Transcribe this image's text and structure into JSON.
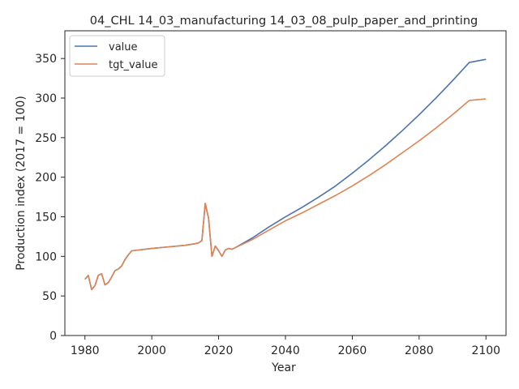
{
  "chart_data": {
    "type": "line",
    "title": "04_CHL 14_03_manufacturing 14_03_08_pulp_paper_and_printing",
    "xlabel": "Year",
    "ylabel": "Production index (2017 = 100)",
    "xlim": [
      1974,
      2106
    ],
    "ylim": [
      0,
      385
    ],
    "xticks": [
      1980,
      2000,
      2020,
      2040,
      2060,
      2080,
      2100
    ],
    "yticks": [
      0,
      50,
      100,
      150,
      200,
      250,
      300,
      350
    ],
    "grid": false,
    "legend_position": "top-left",
    "series": [
      {
        "name": "value",
        "color": "#4c72b0",
        "points": [
          [
            1980,
            71
          ],
          [
            1981,
            76
          ],
          [
            1982,
            58
          ],
          [
            1983,
            63
          ],
          [
            1984,
            76
          ],
          [
            1985,
            78
          ],
          [
            1986,
            64
          ],
          [
            1987,
            67
          ],
          [
            1988,
            74
          ],
          [
            1989,
            82
          ],
          [
            1990,
            84
          ],
          [
            1991,
            88
          ],
          [
            1992,
            96
          ],
          [
            1993,
            102
          ],
          [
            1994,
            107
          ],
          [
            2000,
            110
          ],
          [
            2005,
            112
          ],
          [
            2010,
            114
          ],
          [
            2013,
            116
          ],
          [
            2014,
            117
          ],
          [
            2015,
            120
          ],
          [
            2016,
            167
          ],
          [
            2017,
            148
          ],
          [
            2018,
            100
          ],
          [
            2019,
            113
          ],
          [
            2020,
            107
          ],
          [
            2021,
            100
          ],
          [
            2022,
            108
          ],
          [
            2023,
            110
          ],
          [
            2024,
            109
          ],
          [
            2025,
            111
          ],
          [
            2030,
            123
          ],
          [
            2035,
            137
          ],
          [
            2040,
            150
          ],
          [
            2045,
            162
          ],
          [
            2050,
            175
          ],
          [
            2055,
            189
          ],
          [
            2060,
            205
          ],
          [
            2065,
            222
          ],
          [
            2070,
            240
          ],
          [
            2075,
            259
          ],
          [
            2080,
            279
          ],
          [
            2085,
            300
          ],
          [
            2090,
            322
          ],
          [
            2095,
            345
          ],
          [
            2100,
            349
          ]
        ]
      },
      {
        "name": "tgt_value",
        "color": "#dd8452",
        "points": [
          [
            1980,
            71
          ],
          [
            1981,
            76
          ],
          [
            1982,
            58
          ],
          [
            1983,
            63
          ],
          [
            1984,
            76
          ],
          [
            1985,
            78
          ],
          [
            1986,
            64
          ],
          [
            1987,
            67
          ],
          [
            1988,
            74
          ],
          [
            1989,
            82
          ],
          [
            1990,
            84
          ],
          [
            1991,
            88
          ],
          [
            1992,
            96
          ],
          [
            1993,
            102
          ],
          [
            1994,
            107
          ],
          [
            2000,
            110
          ],
          [
            2005,
            112
          ],
          [
            2010,
            114
          ],
          [
            2013,
            116
          ],
          [
            2014,
            117
          ],
          [
            2015,
            120
          ],
          [
            2016,
            167
          ],
          [
            2017,
            148
          ],
          [
            2018,
            100
          ],
          [
            2019,
            113
          ],
          [
            2020,
            107
          ],
          [
            2021,
            100
          ],
          [
            2022,
            108
          ],
          [
            2023,
            110
          ],
          [
            2024,
            109
          ],
          [
            2025,
            111
          ],
          [
            2030,
            121
          ],
          [
            2035,
            133
          ],
          [
            2040,
            145
          ],
          [
            2045,
            155
          ],
          [
            2050,
            166
          ],
          [
            2055,
            177
          ],
          [
            2060,
            189
          ],
          [
            2065,
            202
          ],
          [
            2070,
            216
          ],
          [
            2075,
            231
          ],
          [
            2080,
            246
          ],
          [
            2085,
            262
          ],
          [
            2090,
            279
          ],
          [
            2095,
            297
          ],
          [
            2100,
            299
          ]
        ]
      }
    ]
  }
}
